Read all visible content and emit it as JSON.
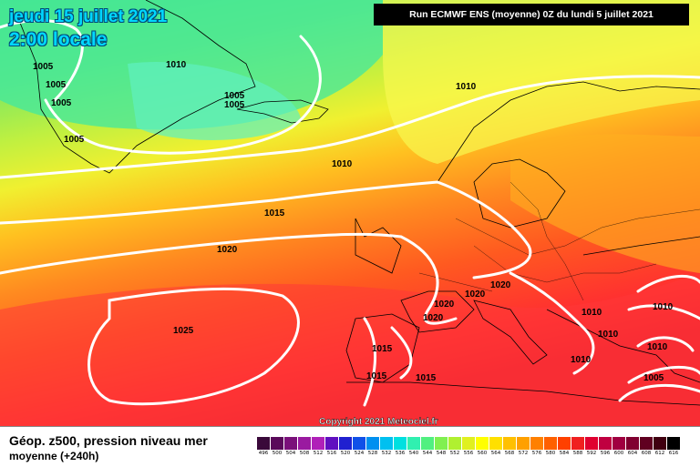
{
  "header": {
    "date": "jeudi 15 juillet 2021",
    "local_time": "2:00 locale",
    "run_info": "Run ECMWF ENS (moyenne) 0Z du lundi 5 juillet 2021"
  },
  "footer": {
    "title": "Géop. z500, pression niveau mer",
    "subtitle_lead": "moyenne",
    "subtitle_tail": "(+240h)",
    "copyright": "Copyright 2021 Meteociel.fr"
  },
  "isobar_labels": [
    "1010",
    "1005",
    "1005",
    "1005",
    "1005",
    "1005",
    "1005",
    "1010",
    "1010",
    "1015",
    "1020",
    "1025",
    "1020",
    "1020",
    "1020",
    "1015",
    "1015",
    "1015",
    "1020",
    "1010",
    "1010",
    "1010",
    "1010",
    "1005"
  ],
  "colorbar": {
    "values": [
      "496",
      "500",
      "504",
      "508",
      "512",
      "516",
      "520",
      "524",
      "528",
      "532",
      "536",
      "540",
      "544",
      "548",
      "552",
      "556",
      "560",
      "564",
      "568",
      "572",
      "576",
      "580",
      "584",
      "588",
      "592",
      "596",
      "600",
      "604",
      "608",
      "612",
      "616"
    ],
    "colors": [
      "#3a0a3a",
      "#5a0a5a",
      "#7a107a",
      "#9a1aa0",
      "#b020b8",
      "#6010c0",
      "#2020d0",
      "#1050e8",
      "#0090f0",
      "#00c0f0",
      "#00e0e0",
      "#30f0b0",
      "#50f080",
      "#80f050",
      "#b0f030",
      "#e0f020",
      "#ffff00",
      "#ffe000",
      "#ffc000",
      "#ffa000",
      "#ff8000",
      "#ff6000",
      "#ff4000",
      "#f02020",
      "#e00030",
      "#c00040",
      "#a00040",
      "#800030",
      "#600020",
      "#400010",
      "#000000"
    ]
  }
}
